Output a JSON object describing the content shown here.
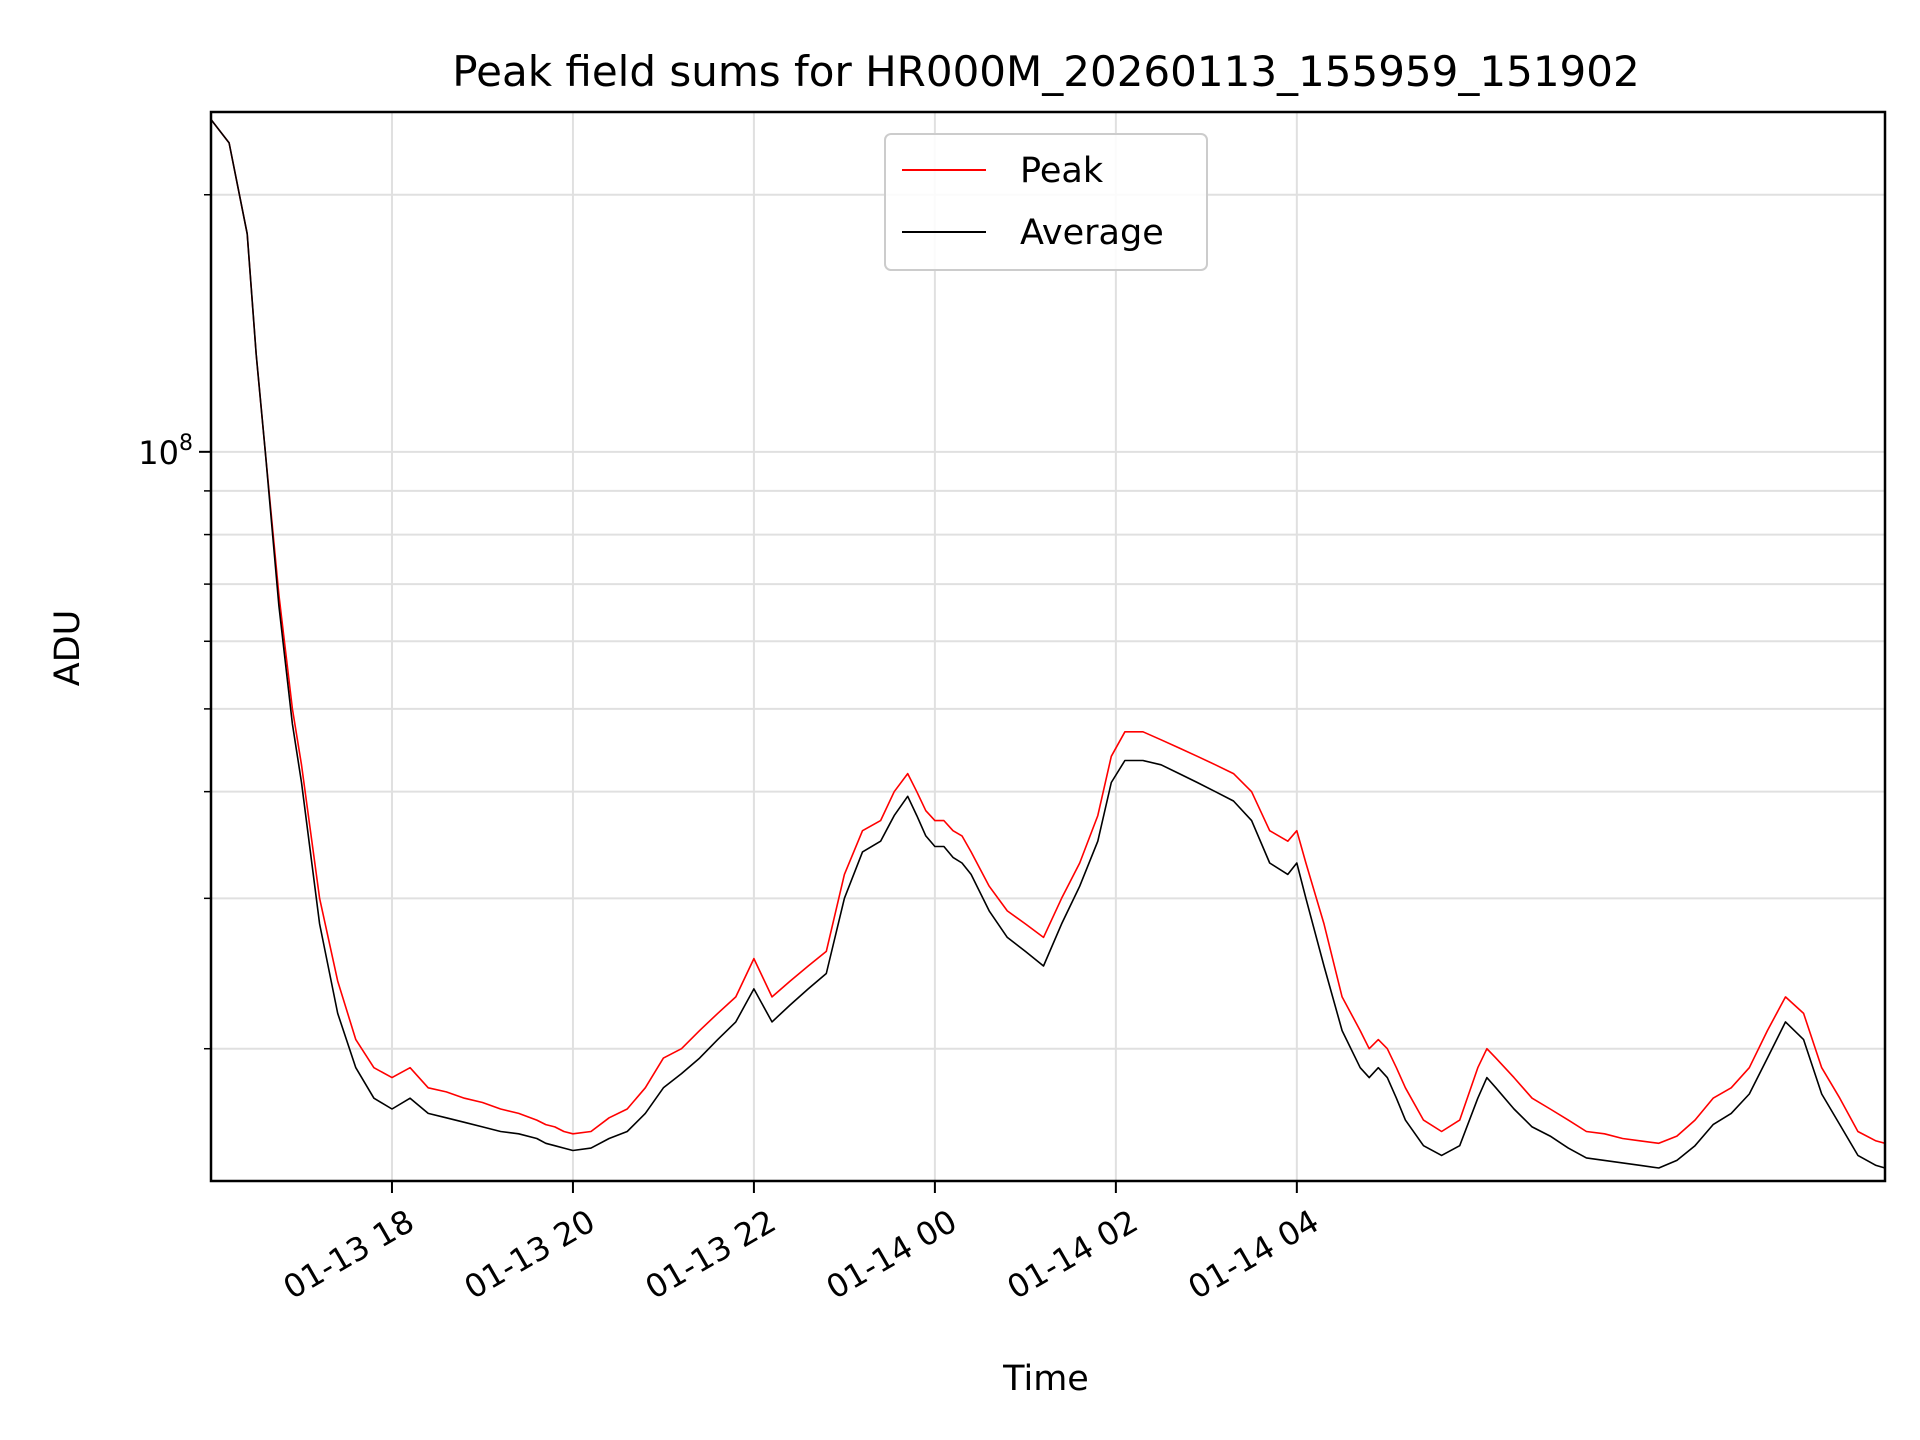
{
  "chart_data": {
    "type": "line",
    "title": "Peak field sums for HR000M_20260113_155959_151902",
    "xlabel": "Time",
    "ylabel": "ADU",
    "yscale": "log",
    "ylim": [
      14000000,
      250000000
    ],
    "xlim_hours": [
      0,
      18.5
    ],
    "xlim_note": "hours since 2026-01-13 16:00",
    "grid": true,
    "legend_position": "top-center",
    "x_ticks": [
      {
        "label": "01-13 18",
        "hour": 2
      },
      {
        "label": "01-13 20",
        "hour": 4
      },
      {
        "label": "01-13 22",
        "hour": 6
      },
      {
        "label": "01-14 00",
        "hour": 8
      },
      {
        "label": "01-14 02",
        "hour": 10
      },
      {
        "label": "01-14 04",
        "hour": 12
      }
    ],
    "y_major_ticks": [
      {
        "value": 100000000,
        "base": "10",
        "exp": "8"
      }
    ],
    "y_minor_values": [
      20000000,
      30000000,
      40000000,
      50000000,
      60000000,
      70000000,
      80000000,
      90000000,
      200000000
    ],
    "series": [
      {
        "name": "Peak",
        "color": "#ff0000",
        "x": [
          0,
          0.2,
          0.4,
          0.5,
          0.6,
          0.75,
          0.9,
          1.0,
          1.2,
          1.4,
          1.6,
          1.8,
          2.0,
          2.2,
          2.4,
          2.6,
          2.8,
          3.0,
          3.2,
          3.4,
          3.6,
          3.7,
          3.8,
          3.9,
          4.0,
          4.2,
          4.4,
          4.6,
          4.8,
          5.0,
          5.2,
          5.4,
          5.6,
          5.8,
          6.0,
          6.2,
          6.4,
          6.6,
          6.8,
          7.0,
          7.2,
          7.4,
          7.55,
          7.7,
          7.8,
          7.9,
          8.0,
          8.1,
          8.2,
          8.3,
          8.4,
          8.6,
          8.8,
          9.0,
          9.2,
          9.4,
          9.6,
          9.8,
          9.95,
          10.1,
          10.3,
          10.5,
          10.7,
          10.9,
          11.1,
          11.3,
          11.5,
          11.7,
          11.9,
          12.0,
          12.1,
          12.3,
          12.5,
          12.7,
          12.8,
          12.9,
          13.0,
          13.1,
          13.2,
          13.4,
          13.6,
          13.8,
          14.0,
          14.1,
          14.2,
          14.4,
          14.6,
          14.8,
          15.0,
          15.2,
          15.4,
          15.6,
          15.8,
          16.0,
          16.2,
          16.4,
          16.6,
          16.8,
          17.0,
          17.2,
          17.4,
          17.6,
          17.8,
          18.0,
          18.2,
          18.4,
          18.5
        ],
        "y": [
          245000000,
          230000000,
          180000000,
          130000000,
          100000000,
          68000000,
          50000000,
          43000000,
          30000000,
          24000000,
          20500000,
          19000000,
          18500000,
          19000000,
          18000000,
          17800000,
          17500000,
          17300000,
          17000000,
          16800000,
          16500000,
          16300000,
          16200000,
          16000000,
          15900000,
          16000000,
          16600000,
          17000000,
          18000000,
          19500000,
          20000000,
          21000000,
          22000000,
          23000000,
          25500000,
          23000000,
          24000000,
          25000000,
          26000000,
          32000000,
          36000000,
          37000000,
          40000000,
          42000000,
          40000000,
          38000000,
          37000000,
          37000000,
          36000000,
          35500000,
          34000000,
          31000000,
          29000000,
          28000000,
          27000000,
          30000000,
          33000000,
          37500000,
          44000000,
          47000000,
          47000000,
          46000000,
          45000000,
          44000000,
          43000000,
          42000000,
          40000000,
          36000000,
          35000000,
          36000000,
          33000000,
          28000000,
          23000000,
          21000000,
          20000000,
          20500000,
          20000000,
          19000000,
          18000000,
          16500000,
          16000000,
          16500000,
          19000000,
          20000000,
          19500000,
          18500000,
          17500000,
          17000000,
          16500000,
          16000000,
          15900000,
          15700000,
          15600000,
          15500000,
          15800000,
          16500000,
          17500000,
          18000000,
          19000000,
          21000000,
          23000000,
          22000000,
          19000000,
          17500000,
          16000000,
          15600000,
          15500000
        ]
      },
      {
        "name": "Average",
        "color": "#000000",
        "x": [
          0,
          0.2,
          0.4,
          0.5,
          0.6,
          0.75,
          0.9,
          1.0,
          1.2,
          1.4,
          1.6,
          1.8,
          2.0,
          2.2,
          2.4,
          2.6,
          2.8,
          3.0,
          3.2,
          3.4,
          3.6,
          3.7,
          3.8,
          3.9,
          4.0,
          4.2,
          4.4,
          4.6,
          4.8,
          5.0,
          5.2,
          5.4,
          5.6,
          5.8,
          6.0,
          6.2,
          6.4,
          6.6,
          6.8,
          7.0,
          7.2,
          7.4,
          7.55,
          7.7,
          7.8,
          7.9,
          8.0,
          8.1,
          8.2,
          8.3,
          8.4,
          8.6,
          8.8,
          9.0,
          9.2,
          9.4,
          9.6,
          9.8,
          9.95,
          10.1,
          10.3,
          10.5,
          10.7,
          10.9,
          11.1,
          11.3,
          11.5,
          11.7,
          11.9,
          12.0,
          12.1,
          12.3,
          12.5,
          12.7,
          12.8,
          12.9,
          13.0,
          13.1,
          13.2,
          13.4,
          13.6,
          13.8,
          14.0,
          14.1,
          14.2,
          14.4,
          14.6,
          14.8,
          15.0,
          15.2,
          15.4,
          15.6,
          15.8,
          16.0,
          16.2,
          16.4,
          16.6,
          16.8,
          17.0,
          17.2,
          17.4,
          17.6,
          17.8,
          18.0,
          18.2,
          18.4,
          18.5
        ],
        "y": [
          245000000,
          230000000,
          180000000,
          130000000,
          100000000,
          66000000,
          48000000,
          41000000,
          28000000,
          22000000,
          19000000,
          17500000,
          17000000,
          17500000,
          16800000,
          16600000,
          16400000,
          16200000,
          16000000,
          15900000,
          15700000,
          15500000,
          15400000,
          15300000,
          15200000,
          15300000,
          15700000,
          16000000,
          16800000,
          18000000,
          18700000,
          19500000,
          20500000,
          21500000,
          23500000,
          21500000,
          22500000,
          23500000,
          24500000,
          30000000,
          34000000,
          35000000,
          37500000,
          39500000,
          37500000,
          35500000,
          34500000,
          34500000,
          33500000,
          33000000,
          32000000,
          29000000,
          27000000,
          26000000,
          25000000,
          28000000,
          31000000,
          35000000,
          41000000,
          43500000,
          43500000,
          43000000,
          42000000,
          41000000,
          40000000,
          39000000,
          37000000,
          33000000,
          32000000,
          33000000,
          30000000,
          25000000,
          21000000,
          19000000,
          18500000,
          19000000,
          18500000,
          17500000,
          16500000,
          15400000,
          15000000,
          15400000,
          17500000,
          18500000,
          18000000,
          17000000,
          16200000,
          15800000,
          15300000,
          14900000,
          14800000,
          14700000,
          14600000,
          14500000,
          14800000,
          15400000,
          16300000,
          16800000,
          17700000,
          19500000,
          21500000,
          20500000,
          17700000,
          16300000,
          15000000,
          14600000,
          14500000
        ]
      }
    ]
  }
}
